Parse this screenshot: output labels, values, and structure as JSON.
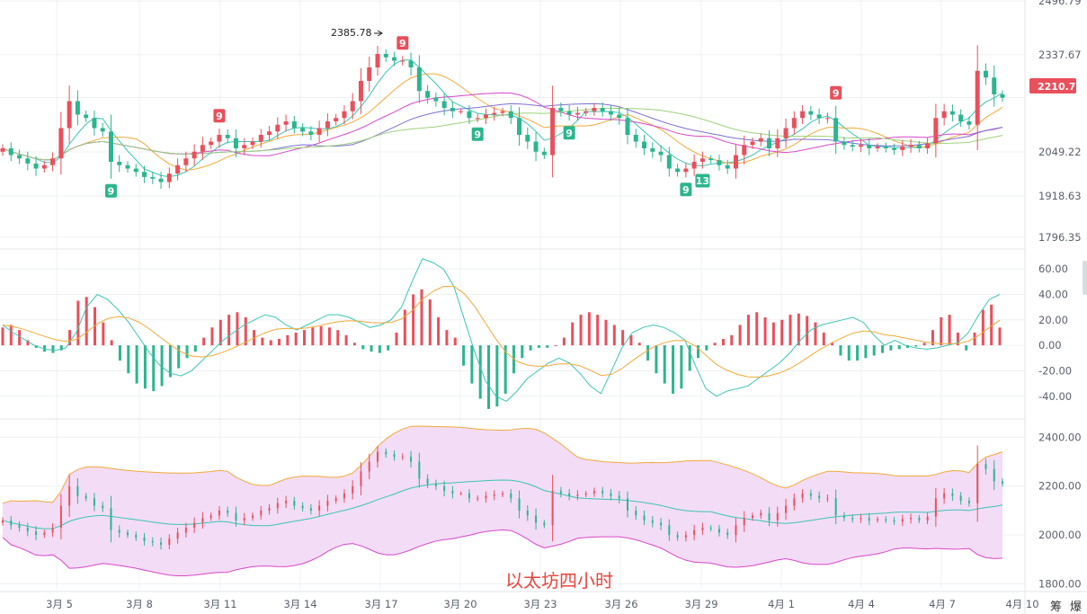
{
  "watermark": "以太坊四小时",
  "corner_labels": [
    "筹",
    "爆"
  ],
  "colors": {
    "up": "#e8505b",
    "down": "#2cb58f",
    "ma_teal": "#3cc4b4",
    "ma_orange": "#f2a93b",
    "ma_magenta": "#d946c9",
    "ma_purple": "#7c6fd6",
    "ma_green": "#9ed27a",
    "boll_fill": "#f3dcf6",
    "boll_upper": "#f2a93b",
    "boll_lower": "#d946c9",
    "boll_mid": "#3cc4b4",
    "grid": "#eef0f3",
    "price_tag": "#e8505b"
  },
  "chart_data": [
    {
      "type": "candlestick",
      "name": "price",
      "x_labels": [
        "3月 5",
        "3月 8",
        "3月 11",
        "3月 14",
        "3月 17",
        "3月 20",
        "3月 23",
        "3月 26",
        "3月 29",
        "4月 1",
        "4月 4",
        "4月 7",
        "4月 10"
      ],
      "y_ticks": [
        "2496.79",
        "2337.67",
        "2210.77",
        "2049.22",
        "1918.63",
        "1796.35"
      ],
      "ylim": [
        1780,
        2500
      ],
      "current_price": "2210.77",
      "annotation_high": "2385.78",
      "td_markers": [
        {
          "label": "9",
          "color": "down",
          "pos": "below",
          "bar": 13
        },
        {
          "label": "9",
          "color": "up",
          "pos": "above",
          "bar": 26
        },
        {
          "label": "9",
          "color": "up",
          "pos": "above",
          "bar": 48
        },
        {
          "label": "9",
          "color": "down",
          "pos": "below",
          "bar": 57
        },
        {
          "label": "9",
          "color": "down",
          "pos": "below",
          "bar": 68
        },
        {
          "label": "9",
          "color": "down",
          "pos": "below",
          "bar": 82
        },
        {
          "label": "13",
          "color": "down",
          "pos": "below",
          "bar": 84
        },
        {
          "label": "9",
          "color": "up",
          "pos": "above",
          "bar": 100
        }
      ],
      "closes": [
        2060,
        2040,
        2030,
        2015,
        2000,
        2010,
        2030,
        2120,
        2200,
        2160,
        2150,
        2120,
        2110,
        2020,
        2010,
        2000,
        1990,
        1975,
        1970,
        1960,
        1985,
        2010,
        2030,
        2050,
        2070,
        2080,
        2100,
        2090,
        2060,
        2070,
        2080,
        2100,
        2110,
        2130,
        2140,
        2120,
        2110,
        2100,
        2120,
        2140,
        2150,
        2170,
        2200,
        2260,
        2300,
        2340,
        2330,
        2320,
        2320,
        2300,
        2230,
        2210,
        2200,
        2180,
        2170,
        2170,
        2150,
        2150,
        2160,
        2165,
        2170,
        2150,
        2100,
        2080,
        2050,
        2040,
        2180,
        2170,
        2160,
        2165,
        2170,
        2180,
        2170,
        2160,
        2150,
        2100,
        2080,
        2060,
        2050,
        2040,
        2000,
        1990,
        2000,
        2020,
        2030,
        2025,
        2010,
        2000,
        2040,
        2070,
        2080,
        2090,
        2060,
        2090,
        2120,
        2150,
        2170,
        2160,
        2150,
        2150,
        2080,
        2070,
        2065,
        2070,
        2060,
        2065,
        2060,
        2055,
        2065,
        2070,
        2060,
        2075,
        2150,
        2170,
        2160,
        2140,
        2130,
        2290,
        2270,
        2220,
        2210
      ]
    },
    {
      "type": "bar+line",
      "name": "macd",
      "y_ticks": [
        "60.00",
        "40.00",
        "20.00",
        "0.00",
        "-20.00",
        "-40.00"
      ],
      "ylim": [
        -55,
        70
      ],
      "histogram": [
        14,
        16,
        12,
        4,
        -2,
        -5,
        -6,
        -4,
        12,
        35,
        38,
        30,
        18,
        4,
        -12,
        -22,
        -30,
        -34,
        -36,
        -32,
        -25,
        -18,
        -10,
        -5,
        6,
        14,
        20,
        24,
        26,
        22,
        12,
        6,
        4,
        5,
        8,
        10,
        12,
        14,
        15,
        14,
        12,
        8,
        2,
        -3,
        -5,
        -6,
        -4,
        10,
        28,
        40,
        44,
        36,
        22,
        12,
        6,
        -16,
        -30,
        -42,
        -50,
        -48,
        -38,
        -22,
        -10,
        -4,
        -2,
        -2,
        0,
        6,
        18,
        24,
        26,
        24,
        20,
        16,
        12,
        8,
        2,
        -12,
        -22,
        -30,
        -38,
        -34,
        -20,
        -10,
        -4,
        2,
        5,
        8,
        16,
        24,
        26,
        22,
        18,
        20,
        24,
        25,
        23,
        18,
        10,
        2,
        -8,
        -12,
        -12,
        -10,
        -8,
        -6,
        -4,
        -3,
        -2,
        -1,
        2,
        12,
        22,
        24,
        10,
        -4,
        10,
        28,
        32,
        14
      ],
      "dif": [
        16,
        10,
        5,
        0,
        -3,
        -4,
        -2,
        10,
        30,
        40,
        36,
        28,
        18,
        6,
        -6,
        -16,
        -22,
        -24,
        -20,
        -12,
        -4,
        4,
        10,
        16,
        20,
        24,
        22,
        16,
        12,
        16,
        20,
        24,
        24,
        22,
        18,
        14,
        16,
        20,
        30,
        50,
        68,
        65,
        60,
        46,
        20,
        -6,
        -28,
        -40,
        -44,
        -36,
        -26,
        -20,
        -14,
        -10,
        -14,
        -22,
        -32,
        -38,
        -20,
        -2,
        10,
        14,
        16,
        14,
        10,
        4,
        -16,
        -34,
        -40,
        -36,
        -34,
        -32,
        -26,
        -20,
        -14,
        -6,
        4,
        12,
        16,
        18,
        20,
        22,
        18,
        8,
        0,
        4,
        0,
        -2,
        -3,
        -2,
        0,
        2,
        10,
        24,
        36,
        40
      ]
    },
    {
      "type": "candlestick+band",
      "name": "bollinger",
      "y_ticks": [
        "2400.00",
        "2200.00",
        "2000.00",
        "1800.00"
      ],
      "ylim": [
        1780,
        2460
      ]
    }
  ]
}
